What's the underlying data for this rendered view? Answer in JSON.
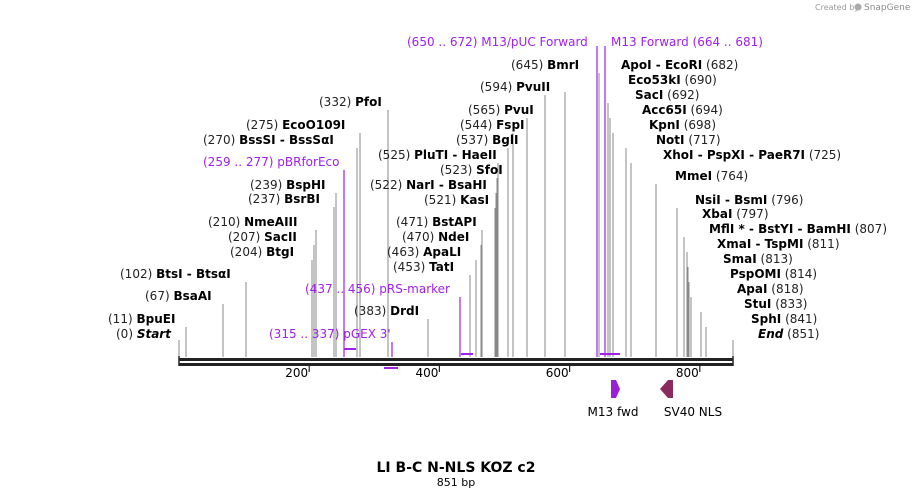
{
  "credit": {
    "text": "Created by",
    "brand": "SnapGene"
  },
  "title": "LI B-C N-NLS KOZ c2",
  "length": "851 bp",
  "axis": {
    "total": 851,
    "ticks": [
      {
        "v": 200,
        "label": "200"
      },
      {
        "v": 400,
        "label": "400"
      },
      {
        "v": 600,
        "label": "600"
      },
      {
        "v": 800,
        "label": "800"
      }
    ]
  },
  "sites": [
    {
      "pos": "(650 .. 672)",
      "name": "M13/pUC Forward",
      "primer": true
    },
    {
      "name": "M13 Forward",
      "pos": "(664 .. 681)",
      "primer": true
    },
    {
      "pos": "(645)",
      "name": "BmrI"
    },
    {
      "name": "ApoI",
      "name2": "EcoRI",
      "pos": "(682)"
    },
    {
      "name": "Eco53kI",
      "pos": "(690)"
    },
    {
      "pos": "(594)",
      "name": "PvuII"
    },
    {
      "name": "SacI",
      "pos": "(692)"
    },
    {
      "pos": "(332)",
      "name": "PfoI"
    },
    {
      "pos": "(565)",
      "name": "PvuI"
    },
    {
      "name": "Acc65I",
      "pos": "(694)"
    },
    {
      "pos": "(275)",
      "name": "EcoO109I"
    },
    {
      "pos": "(544)",
      "name": "FspI"
    },
    {
      "name": "KpnI",
      "pos": "(698)"
    },
    {
      "pos": "(270)",
      "name": "BssSI",
      "name2": "BssSαI"
    },
    {
      "pos": "(537)",
      "name": "BglI"
    },
    {
      "name": "NotI",
      "pos": "(717)"
    },
    {
      "pos": "(525)",
      "name": "PluTI",
      "name2": "HaeII"
    },
    {
      "name": "XhoI",
      "name2": "PspXI",
      "name3": "PaeR7I",
      "pos": "(725)"
    },
    {
      "pos": "(259 .. 277)",
      "name": "pBRforEco",
      "primer": true
    },
    {
      "pos": "(523)",
      "name": "SfoI"
    },
    {
      "name": "MmeI",
      "pos": "(764)"
    },
    {
      "pos": "(239)",
      "name": "BspHI"
    },
    {
      "pos": "(522)",
      "name": "NarI",
      "name2": "BsaHI"
    },
    {
      "pos": "(237)",
      "name": "BsrBI"
    },
    {
      "pos": "(521)",
      "name": "KasI"
    },
    {
      "name": "NsiI",
      "name2": "BsmI",
      "pos": "(796)"
    },
    {
      "name": "XbaI",
      "pos": "(797)"
    },
    {
      "pos": "(210)",
      "name": "NmeAIII"
    },
    {
      "pos": "(471)",
      "name": "BstAPI"
    },
    {
      "name": "MflI *",
      "name2": "BstYI",
      "name3": "BamHI",
      "pos": "(807)"
    },
    {
      "pos": "(207)",
      "name": "SacII"
    },
    {
      "pos": "(470)",
      "name": "NdeI"
    },
    {
      "name": "XmaI",
      "name2": "TspMI",
      "pos": "(811)"
    },
    {
      "pos": "(204)",
      "name": "BtgI"
    },
    {
      "pos": "(463)",
      "name": "ApaLI"
    },
    {
      "name": "SmaI",
      "pos": "(813)"
    },
    {
      "pos": "(453)",
      "name": "TatI"
    },
    {
      "pos": "(102)",
      "name": "BtsI",
      "name2": "BtsαI"
    },
    {
      "name": "PspOMI",
      "pos": "(814)"
    },
    {
      "pos": "(437 .. 456)",
      "name": "pRS-marker",
      "primer": true
    },
    {
      "name": "ApaI",
      "pos": "(818)"
    },
    {
      "pos": "(67)",
      "name": "BsaAI"
    },
    {
      "name": "StuI",
      "pos": "(833)"
    },
    {
      "pos": "(383)",
      "name": "DrdI"
    },
    {
      "pos": "(11)",
      "name": "BpuEI"
    },
    {
      "name": "SphI",
      "pos": "(841)"
    },
    {
      "pos": "(315 .. 337)",
      "name": "pGEX 3'",
      "primer": true
    },
    {
      "pos": "(0)",
      "name": "Start",
      "italic": true
    },
    {
      "name": "End",
      "pos": "(851)",
      "italic": true
    }
  ],
  "features": [
    {
      "name": "M13 fwd",
      "color": "#9b1fd6",
      "dir": "right"
    },
    {
      "name": "SV40 NLS",
      "color": "#8b2a5e",
      "dir": "left"
    }
  ]
}
